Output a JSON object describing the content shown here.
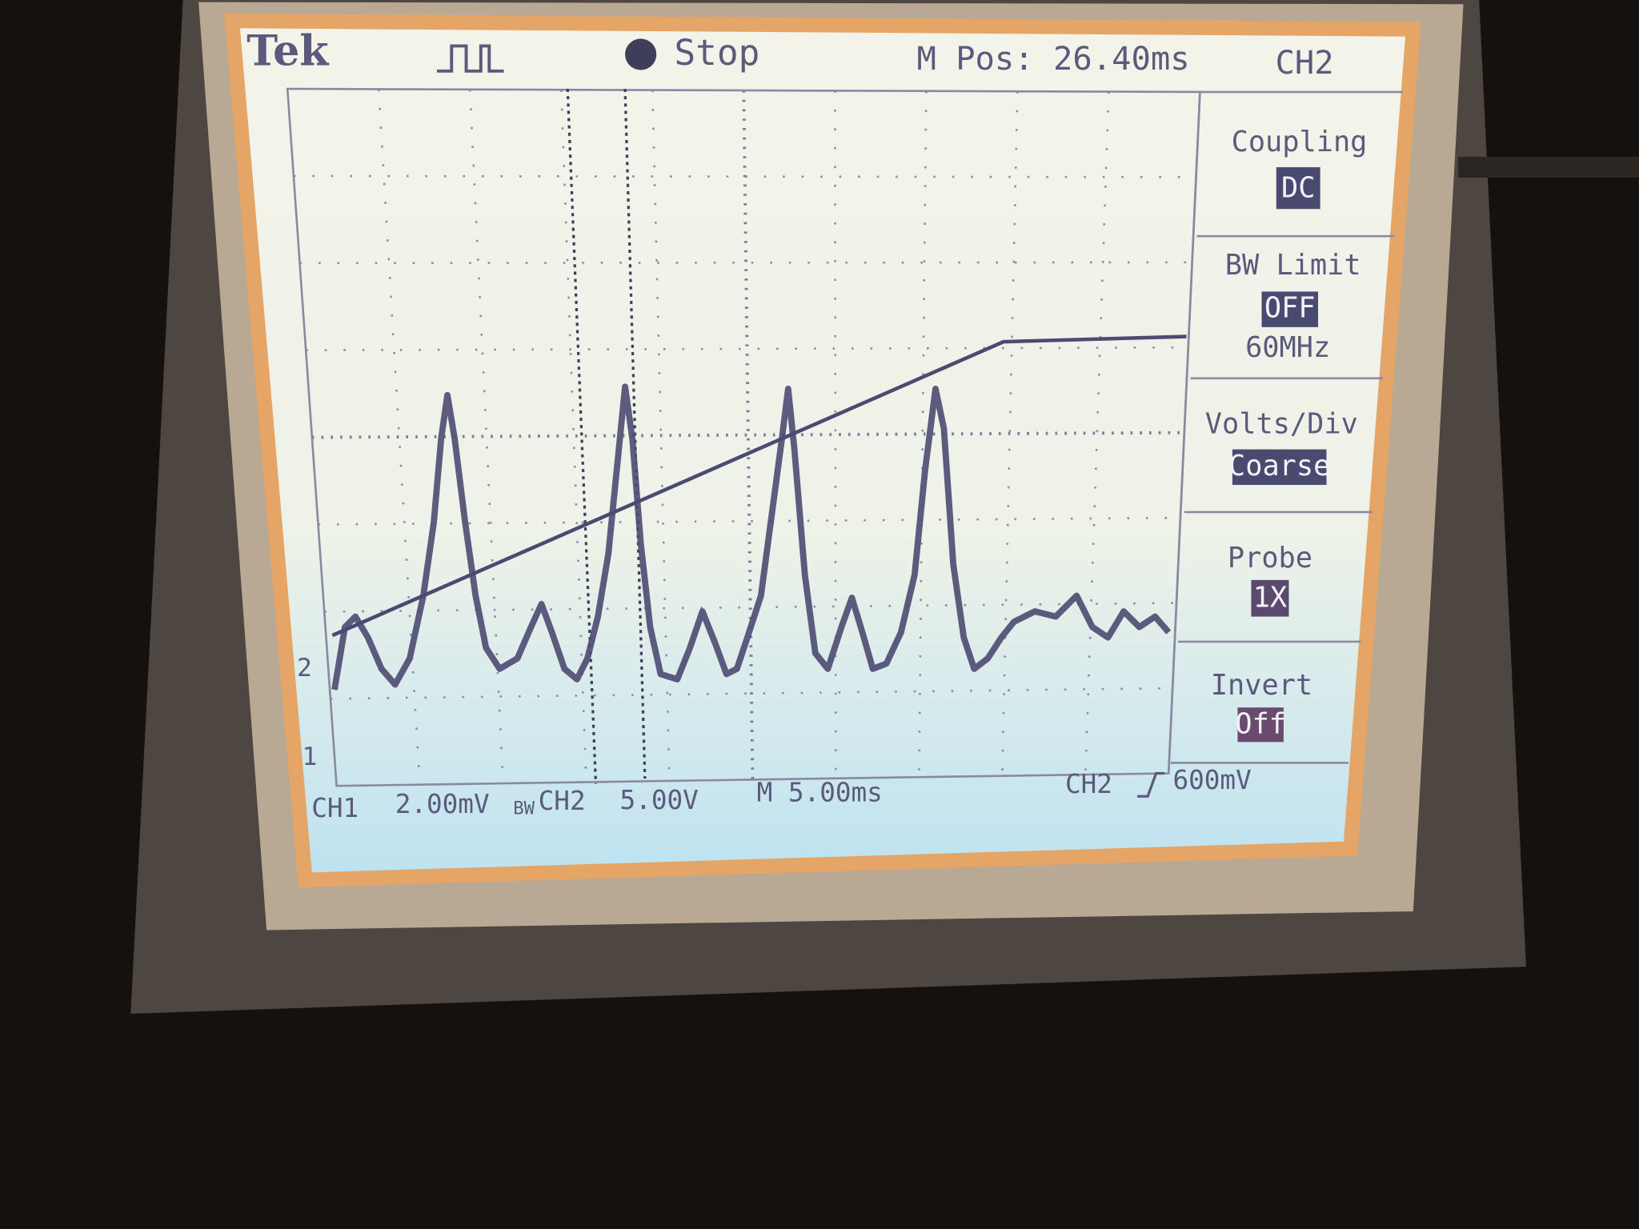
{
  "header": {
    "brand": "Tek",
    "state": "Stop",
    "position": "M Pos: 26.40ms",
    "channel": "CH2"
  },
  "menu": [
    {
      "label": "Coupling",
      "value": "DC"
    },
    {
      "label": "BW Limit",
      "value": "OFF",
      "note": "60MHz"
    },
    {
      "label": "Volts/Div",
      "value": "Coarse"
    },
    {
      "label": "Probe",
      "value": "1X"
    },
    {
      "label": "Invert",
      "value": "Off"
    }
  ],
  "markers": [
    "2",
    "1"
  ],
  "footer": {
    "ch1": "CH1",
    "ch1_scale": "2.00mV",
    "bw": "BW",
    "ch2": "CH2",
    "ch2_scale": "5.00V",
    "timebase": "M 5.00ms",
    "trigger_source": "CH2",
    "trigger_level": "600mV"
  }
}
